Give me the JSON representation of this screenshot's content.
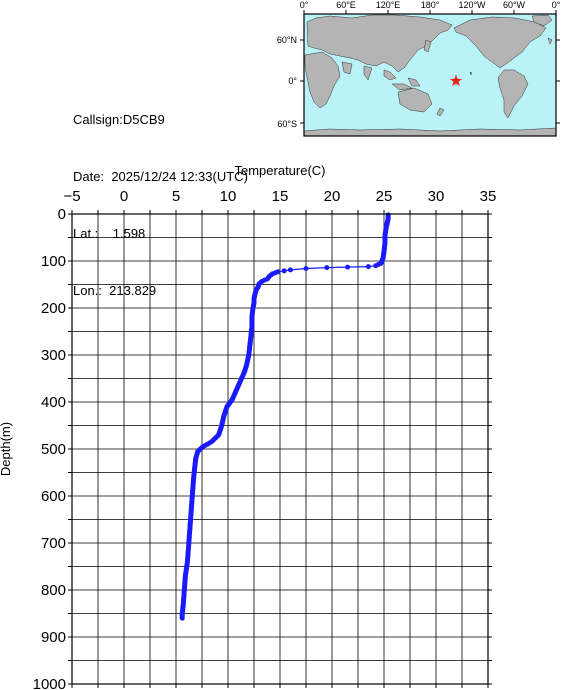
{
  "station": {
    "callsign_label": "Callsign:",
    "callsign": "D5CB9",
    "date_label": "Date:",
    "date": "2025/12/24 12:33(UTC)",
    "lat_label": "Lat.:",
    "lat": "1.598",
    "lon_label": "Lon.:",
    "lon": "213.829"
  },
  "map": {
    "top_ticks": [
      "0°",
      "60°E",
      "120°E",
      "180°",
      "120°W",
      "60°W",
      "0°"
    ],
    "side_ticks": [
      "60°N",
      "0°",
      "60°S"
    ],
    "ocean_color": "#b9f2f7",
    "land_color": "#b4b4b4",
    "marker_color": "#e8221c",
    "marker_icon": "red-star"
  },
  "chart_data": {
    "type": "line",
    "xlabel": "Temperature(C)",
    "ylabel": "Depth(m)",
    "xlim": [
      -5,
      35
    ],
    "ylim": [
      1000,
      0
    ],
    "xticks": [
      -5,
      0,
      5,
      10,
      15,
      20,
      25,
      30,
      35
    ],
    "yticks": [
      0,
      100,
      200,
      300,
      400,
      500,
      600,
      700,
      800,
      900,
      1000
    ],
    "grid": true,
    "series_color": "#1a1aff",
    "series": [
      {
        "points": [
          [
            25.4,
            2
          ],
          [
            25.4,
            10
          ],
          [
            25.3,
            20
          ],
          [
            25.2,
            30
          ],
          [
            25.1,
            45
          ],
          [
            25.1,
            60
          ],
          [
            25.0,
            80
          ],
          [
            24.9,
            95
          ],
          [
            24.7,
            105
          ],
          [
            24.2,
            110
          ],
          [
            23.5,
            112
          ],
          [
            21.5,
            113
          ],
          [
            19.5,
            114
          ],
          [
            17.5,
            116
          ],
          [
            16.0,
            119
          ],
          [
            14.8,
            123
          ],
          [
            14.3,
            127
          ],
          [
            14.0,
            132
          ],
          [
            13.8,
            138
          ],
          [
            13.3,
            143
          ],
          [
            13.0,
            148
          ],
          [
            12.9,
            155
          ],
          [
            12.7,
            162
          ],
          [
            12.6,
            170
          ],
          [
            12.5,
            180
          ],
          [
            12.5,
            190
          ],
          [
            12.4,
            200
          ],
          [
            12.3,
            220
          ],
          [
            12.3,
            240
          ],
          [
            12.2,
            260
          ],
          [
            12.1,
            280
          ],
          [
            12.0,
            300
          ],
          [
            11.8,
            320
          ],
          [
            11.6,
            335
          ],
          [
            11.3,
            350
          ],
          [
            11.0,
            365
          ],
          [
            10.7,
            380
          ],
          [
            10.4,
            395
          ],
          [
            9.9,
            410
          ],
          [
            9.6,
            430
          ],
          [
            9.4,
            450
          ],
          [
            9.1,
            470
          ],
          [
            8.4,
            485
          ],
          [
            7.6,
            495
          ],
          [
            7.1,
            505
          ],
          [
            6.9,
            520
          ],
          [
            6.8,
            540
          ],
          [
            6.7,
            560
          ],
          [
            6.6,
            590
          ],
          [
            6.5,
            620
          ],
          [
            6.4,
            650
          ],
          [
            6.3,
            680
          ],
          [
            6.2,
            710
          ],
          [
            6.1,
            740
          ],
          [
            5.9,
            770
          ],
          [
            5.8,
            800
          ],
          [
            5.7,
            830
          ],
          [
            5.6,
            850
          ],
          [
            5.6,
            860
          ]
        ]
      }
    ]
  }
}
